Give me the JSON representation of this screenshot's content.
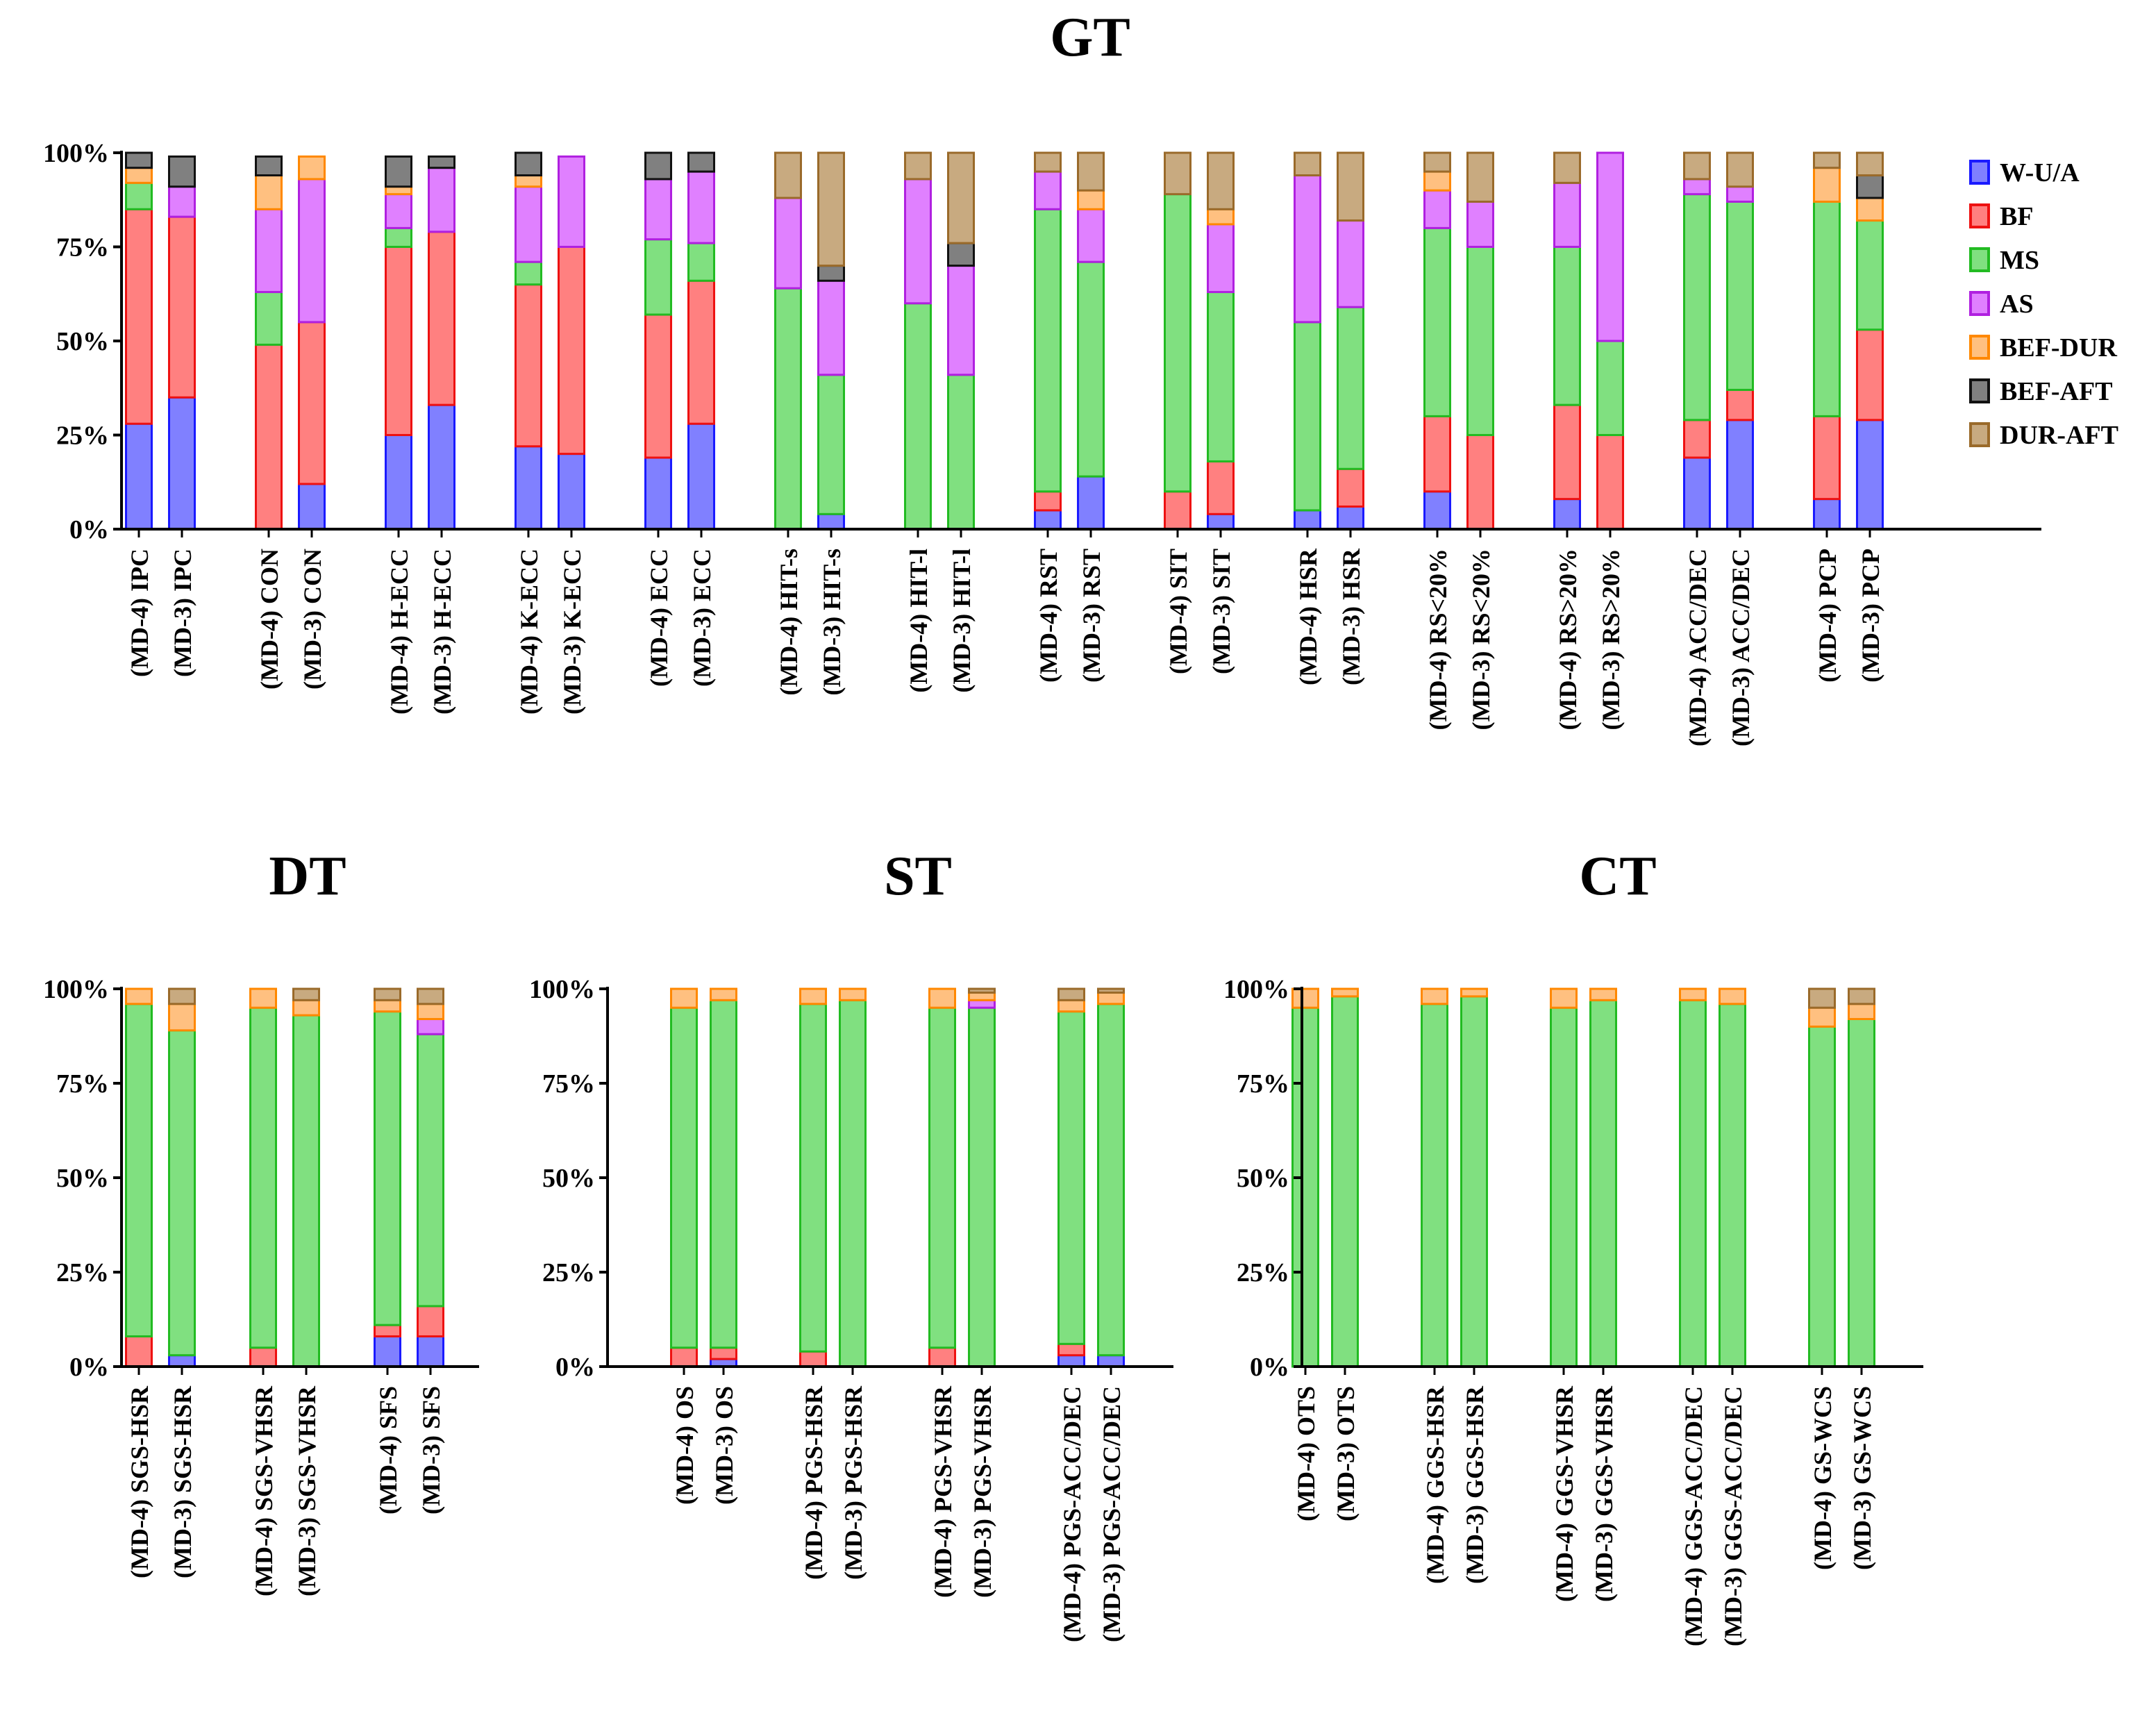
{
  "chart_data": [
    {
      "id": "gt",
      "type": "bar",
      "stacked": true,
      "title": "GT",
      "yticks": [
        "0%",
        "25%",
        "50%",
        "75%",
        "100%"
      ],
      "ylim": [
        0,
        100
      ],
      "stack_order": [
        "W-U/A",
        "BF",
        "MS",
        "AS",
        "BEF-DUR",
        "BEF-AFT",
        "DUR-AFT"
      ],
      "bars": [
        {
          "label": "(MD-4) IPC",
          "values": [
            28,
            57,
            7,
            0,
            4,
            4,
            0
          ]
        },
        {
          "label": "(MD-3) IPC",
          "values": [
            35,
            48,
            0,
            8,
            0,
            8,
            0
          ]
        },
        {
          "label": "(MD-4) CON",
          "values": [
            0,
            49,
            14,
            22,
            9,
            5,
            0
          ]
        },
        {
          "label": "(MD-3) CON",
          "values": [
            12,
            43,
            0,
            38,
            6,
            0,
            0
          ]
        },
        {
          "label": "(MD-4) H-ECC",
          "values": [
            25,
            50,
            5,
            9,
            2,
            8,
            0
          ]
        },
        {
          "label": "(MD-3) H-ECC",
          "values": [
            33,
            46,
            0,
            17,
            0,
            3,
            0
          ]
        },
        {
          "label": "(MD-4) K-ECC",
          "values": [
            22,
            43,
            6,
            20,
            3,
            6,
            0
          ]
        },
        {
          "label": "(MD-3) K-ECC",
          "values": [
            20,
            55,
            0,
            24,
            0,
            0,
            0
          ]
        },
        {
          "label": "(MD-4) ECC",
          "values": [
            19,
            38,
            20,
            16,
            0,
            7,
            0
          ]
        },
        {
          "label": "(MD-3) ECC",
          "values": [
            28,
            38,
            10,
            19,
            0,
            5,
            0
          ]
        },
        {
          "label": "(MD-4) HIT-s",
          "values": [
            0,
            0,
            64,
            24,
            0,
            0,
            12
          ]
        },
        {
          "label": "(MD-3) HIT-s",
          "values": [
            4,
            0,
            37,
            25,
            0,
            4,
            30
          ]
        },
        {
          "label": "(MD-4) HIT-l",
          "values": [
            0,
            0,
            60,
            33,
            0,
            0,
            7
          ]
        },
        {
          "label": "(MD-3) HIT-l",
          "values": [
            0,
            0,
            41,
            29,
            0,
            6,
            24
          ]
        },
        {
          "label": "(MD-4) RST",
          "values": [
            5,
            5,
            75,
            10,
            0,
            0,
            5
          ]
        },
        {
          "label": "(MD-3) RST",
          "values": [
            14,
            0,
            57,
            14,
            5,
            0,
            10
          ]
        },
        {
          "label": "(MD-4) SIT",
          "values": [
            0,
            10,
            79,
            0,
            0,
            0,
            11
          ]
        },
        {
          "label": "(MD-3) SIT",
          "values": [
            4,
            14,
            45,
            18,
            4,
            0,
            15
          ]
        },
        {
          "label": "(MD-4) HSR",
          "values": [
            5,
            0,
            50,
            39,
            0,
            0,
            6
          ]
        },
        {
          "label": "(MD-3) HSR",
          "values": [
            6,
            10,
            43,
            23,
            0,
            0,
            18
          ]
        },
        {
          "label": "(MD-4) RS<20%",
          "values": [
            10,
            20,
            50,
            10,
            5,
            0,
            5
          ]
        },
        {
          "label": "(MD-3) RS<20%",
          "values": [
            0,
            25,
            50,
            12,
            0,
            0,
            13
          ]
        },
        {
          "label": "(MD-4) RS>20%",
          "values": [
            8,
            25,
            42,
            17,
            0,
            0,
            8
          ]
        },
        {
          "label": "(MD-3) RS>20%",
          "values": [
            0,
            25,
            25,
            50,
            0,
            0,
            0
          ]
        },
        {
          "label": "(MD-4) ACC/DEC",
          "values": [
            19,
            10,
            60,
            4,
            0,
            0,
            7
          ]
        },
        {
          "label": "(MD-3) ACC/DEC",
          "values": [
            29,
            8,
            50,
            4,
            0,
            0,
            9
          ]
        },
        {
          "label": "(MD-4) PCP",
          "values": [
            8,
            22,
            57,
            0,
            9,
            0,
            4
          ]
        },
        {
          "label": "(MD-3) PCP",
          "values": [
            29,
            24,
            29,
            0,
            6,
            6,
            6
          ]
        }
      ],
      "legend": {
        "position": "right",
        "entries": [
          "W-U/A",
          "BF",
          "MS",
          "AS",
          "BEF-DUR",
          "BEF-AFT",
          "DUR-AFT"
        ]
      }
    },
    {
      "id": "dt",
      "type": "bar",
      "stacked": true,
      "title": "DT",
      "yticks": [
        "0%",
        "25%",
        "50%",
        "75%",
        "100%"
      ],
      "ylim": [
        0,
        100
      ],
      "stack_order": [
        "W-U/A",
        "BF",
        "MS",
        "AS",
        "BEF-DUR",
        "BEF-AFT",
        "DUR-AFT"
      ],
      "bars": [
        {
          "label": "(MD-4) SGS-HSR",
          "values": [
            0,
            8,
            88,
            0,
            4,
            0,
            0
          ]
        },
        {
          "label": "(MD-3) SGS-HSR",
          "values": [
            3,
            0,
            86,
            0,
            7,
            0,
            4
          ]
        },
        {
          "label": "(MD-4) SGS-VHSR",
          "values": [
            0,
            5,
            90,
            0,
            5,
            0,
            0
          ]
        },
        {
          "label": "(MD-3) SGS-VHSR",
          "values": [
            0,
            0,
            93,
            0,
            4,
            0,
            3
          ]
        },
        {
          "label": "(MD-4) SFS",
          "values": [
            8,
            3,
            83,
            0,
            3,
            0,
            3
          ]
        },
        {
          "label": "(MD-3) SFS",
          "values": [
            8,
            8,
            72,
            4,
            4,
            0,
            4
          ]
        }
      ]
    },
    {
      "id": "st",
      "type": "bar",
      "stacked": true,
      "title": "ST",
      "yticks": [
        "0%",
        "25%",
        "50%",
        "75%",
        "100%"
      ],
      "ylim": [
        0,
        100
      ],
      "stack_order": [
        "W-U/A",
        "BF",
        "MS",
        "AS",
        "BEF-DUR",
        "BEF-AFT",
        "DUR-AFT"
      ],
      "bars": [
        {
          "label": "(MD-4) OS",
          "values": [
            0,
            5,
            90,
            0,
            5,
            0,
            0
          ]
        },
        {
          "label": "(MD-3) OS",
          "values": [
            2,
            3,
            92,
            0,
            3,
            0,
            0
          ]
        },
        {
          "label": "(MD-4) PGS-HSR",
          "values": [
            0,
            4,
            92,
            0,
            4,
            0,
            0
          ]
        },
        {
          "label": "(MD-3) PGS-HSR",
          "values": [
            0,
            0,
            97,
            0,
            3,
            0,
            0
          ]
        },
        {
          "label": "(MD-4) PGS-VHSR",
          "values": [
            0,
            5,
            90,
            0,
            5,
            0,
            0
          ]
        },
        {
          "label": "(MD-3) PGS-VHSR",
          "values": [
            0,
            0,
            95,
            2,
            2,
            0,
            1
          ]
        },
        {
          "label": "(MD-4) PGS-ACC/DEC",
          "values": [
            3,
            3,
            88,
            0,
            3,
            0,
            3
          ]
        },
        {
          "label": "(MD-3) PGS-ACC/DEC",
          "values": [
            3,
            0,
            93,
            0,
            3,
            0,
            1
          ]
        }
      ]
    },
    {
      "id": "ct",
      "type": "bar",
      "stacked": true,
      "title": "CT",
      "yticks": [
        "0%",
        "25%",
        "50%",
        "75%",
        "100%"
      ],
      "ylim": [
        0,
        100
      ],
      "stack_order": [
        "W-U/A",
        "BF",
        "MS",
        "AS",
        "BEF-DUR",
        "BEF-AFT",
        "DUR-AFT"
      ],
      "bars": [
        {
          "label": "(MD-4) OTS",
          "values": [
            0,
            0,
            95,
            0,
            5,
            0,
            0
          ]
        },
        {
          "label": "(MD-3) OTS",
          "values": [
            0,
            0,
            98,
            0,
            2,
            0,
            0
          ]
        },
        {
          "label": "(MD-4) GGS-HSR",
          "values": [
            0,
            0,
            96,
            0,
            4,
            0,
            0
          ]
        },
        {
          "label": "(MD-3) GGS-HSR",
          "values": [
            0,
            0,
            98,
            0,
            2,
            0,
            0
          ]
        },
        {
          "label": "(MD-4) GGS-VHSR",
          "values": [
            0,
            0,
            95,
            0,
            5,
            0,
            0
          ]
        },
        {
          "label": "(MD-3) GGS-VHSR",
          "values": [
            0,
            0,
            97,
            0,
            3,
            0,
            0
          ]
        },
        {
          "label": "(MD-4) GGS-ACC/DEC",
          "values": [
            0,
            0,
            97,
            0,
            3,
            0,
            0
          ]
        },
        {
          "label": "(MD-3) GGS-ACC/DEC",
          "values": [
            0,
            0,
            96,
            0,
            4,
            0,
            0
          ]
        },
        {
          "label": "(MD-4) GS-WCS",
          "values": [
            0,
            0,
            90,
            0,
            5,
            0,
            5
          ]
        },
        {
          "label": "(MD-3) GS-WCS",
          "values": [
            0,
            0,
            92,
            0,
            4,
            0,
            4
          ]
        }
      ]
    }
  ],
  "series_colors": {
    "W-U/A": {
      "fill": "#8080ff",
      "stroke": "#1a1aff"
    },
    "BF": {
      "fill": "#ff8080",
      "stroke": "#ee1111"
    },
    "MS": {
      "fill": "#80e080",
      "stroke": "#22bb22"
    },
    "AS": {
      "fill": "#e080ff",
      "stroke": "#b020e0"
    },
    "BEF-DUR": {
      "fill": "#ffc080",
      "stroke": "#ff8800"
    },
    "BEF-AFT": {
      "fill": "#808080",
      "stroke": "#111111"
    },
    "DUR-AFT": {
      "fill": "#c8aa80",
      "stroke": "#9a6a2a"
    }
  }
}
